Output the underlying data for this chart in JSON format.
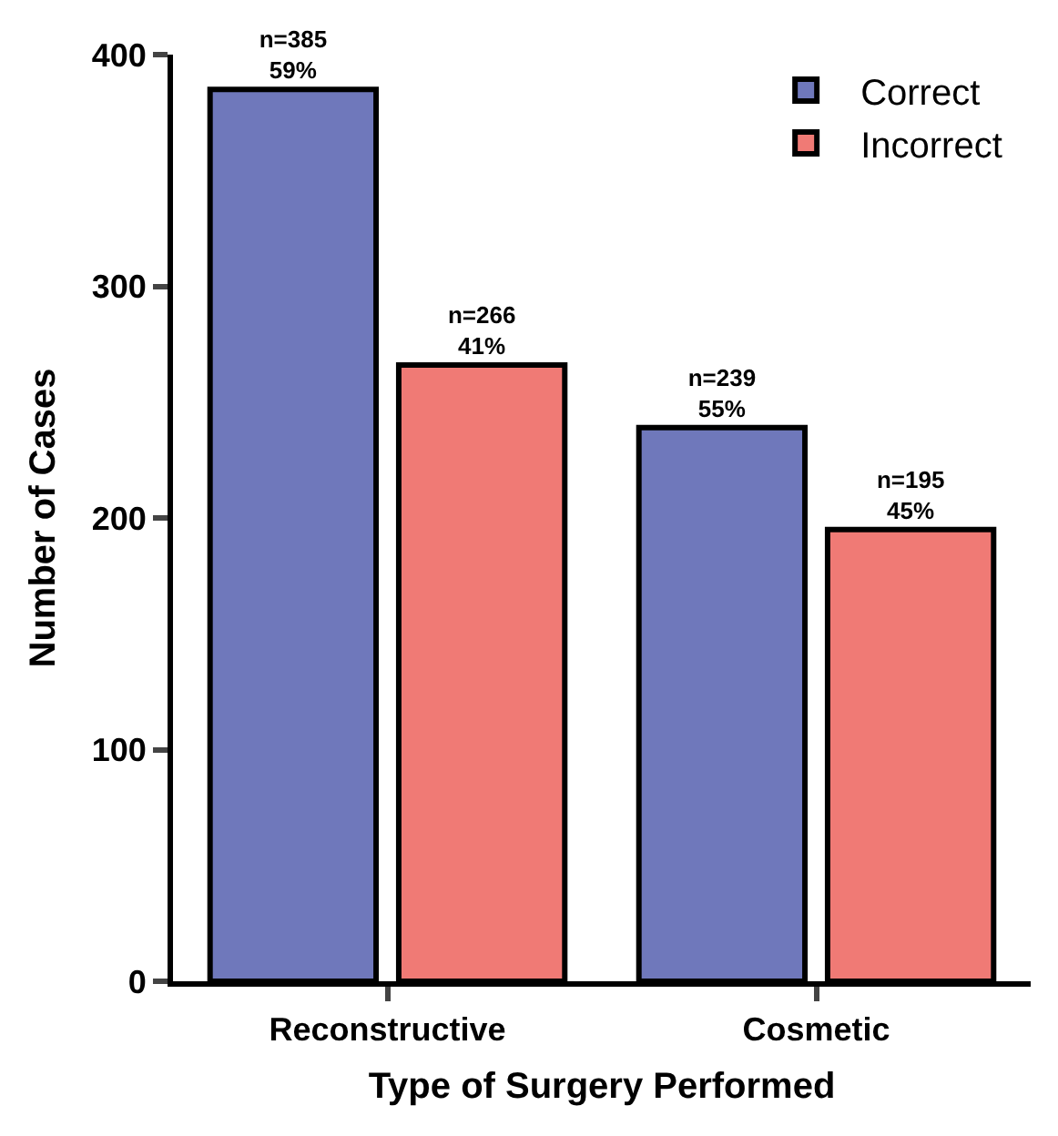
{
  "chart_data": {
    "type": "bar",
    "xlabel": "Type of Surgery Performed",
    "ylabel": "Number of Cases",
    "categories": [
      "Reconstructive",
      "Cosmetic"
    ],
    "series": [
      {
        "name": "Correct",
        "color": "#6f78bb",
        "values": [
          385,
          239
        ],
        "value_labels": [
          "n=385\n59%",
          "n=239\n55%"
        ]
      },
      {
        "name": "Incorrect",
        "color": "#f07a75",
        "values": [
          266,
          195
        ],
        "value_labels": [
          "n=266\n41%",
          "n=195\n45%"
        ]
      }
    ],
    "ylim": [
      0,
      400
    ],
    "yticks": [
      0,
      100,
      200,
      300,
      400
    ],
    "legend": "top right"
  }
}
